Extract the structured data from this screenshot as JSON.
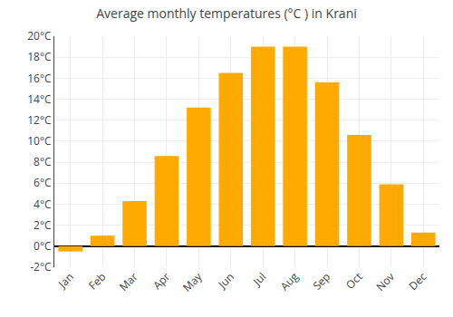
{
  "chart_data": {
    "type": "bar",
    "title": "Average monthly temperatures (°C ) in Krani",
    "categories": [
      "Jan",
      "Feb",
      "Mar",
      "Apr",
      "May",
      "Jun",
      "Jul",
      "Aug",
      "Sep",
      "Oct",
      "Nov",
      "Dec"
    ],
    "values": [
      -0.5,
      1.0,
      4.3,
      8.6,
      13.2,
      16.5,
      19.0,
      19.0,
      15.6,
      10.6,
      5.9,
      1.3
    ],
    "color": "#FFAA00",
    "ylim": [
      -2,
      20
    ],
    "yticks": [
      {
        "value": -2,
        "label": "-2°C"
      },
      {
        "value": 0,
        "label": "0°C"
      },
      {
        "value": 2,
        "label": "2°C"
      },
      {
        "value": 4,
        "label": "4°C"
      },
      {
        "value": 6,
        "label": "6°C"
      },
      {
        "value": 8,
        "label": "8°C"
      },
      {
        "value": 10,
        "label": "10°C"
      },
      {
        "value": 12,
        "label": "12°C"
      },
      {
        "value": 14,
        "label": "14°C"
      },
      {
        "value": 16,
        "label": "16°C"
      },
      {
        "value": 18,
        "label": "18°C"
      },
      {
        "value": 20,
        "label": "20°C"
      }
    ],
    "grid": true
  }
}
